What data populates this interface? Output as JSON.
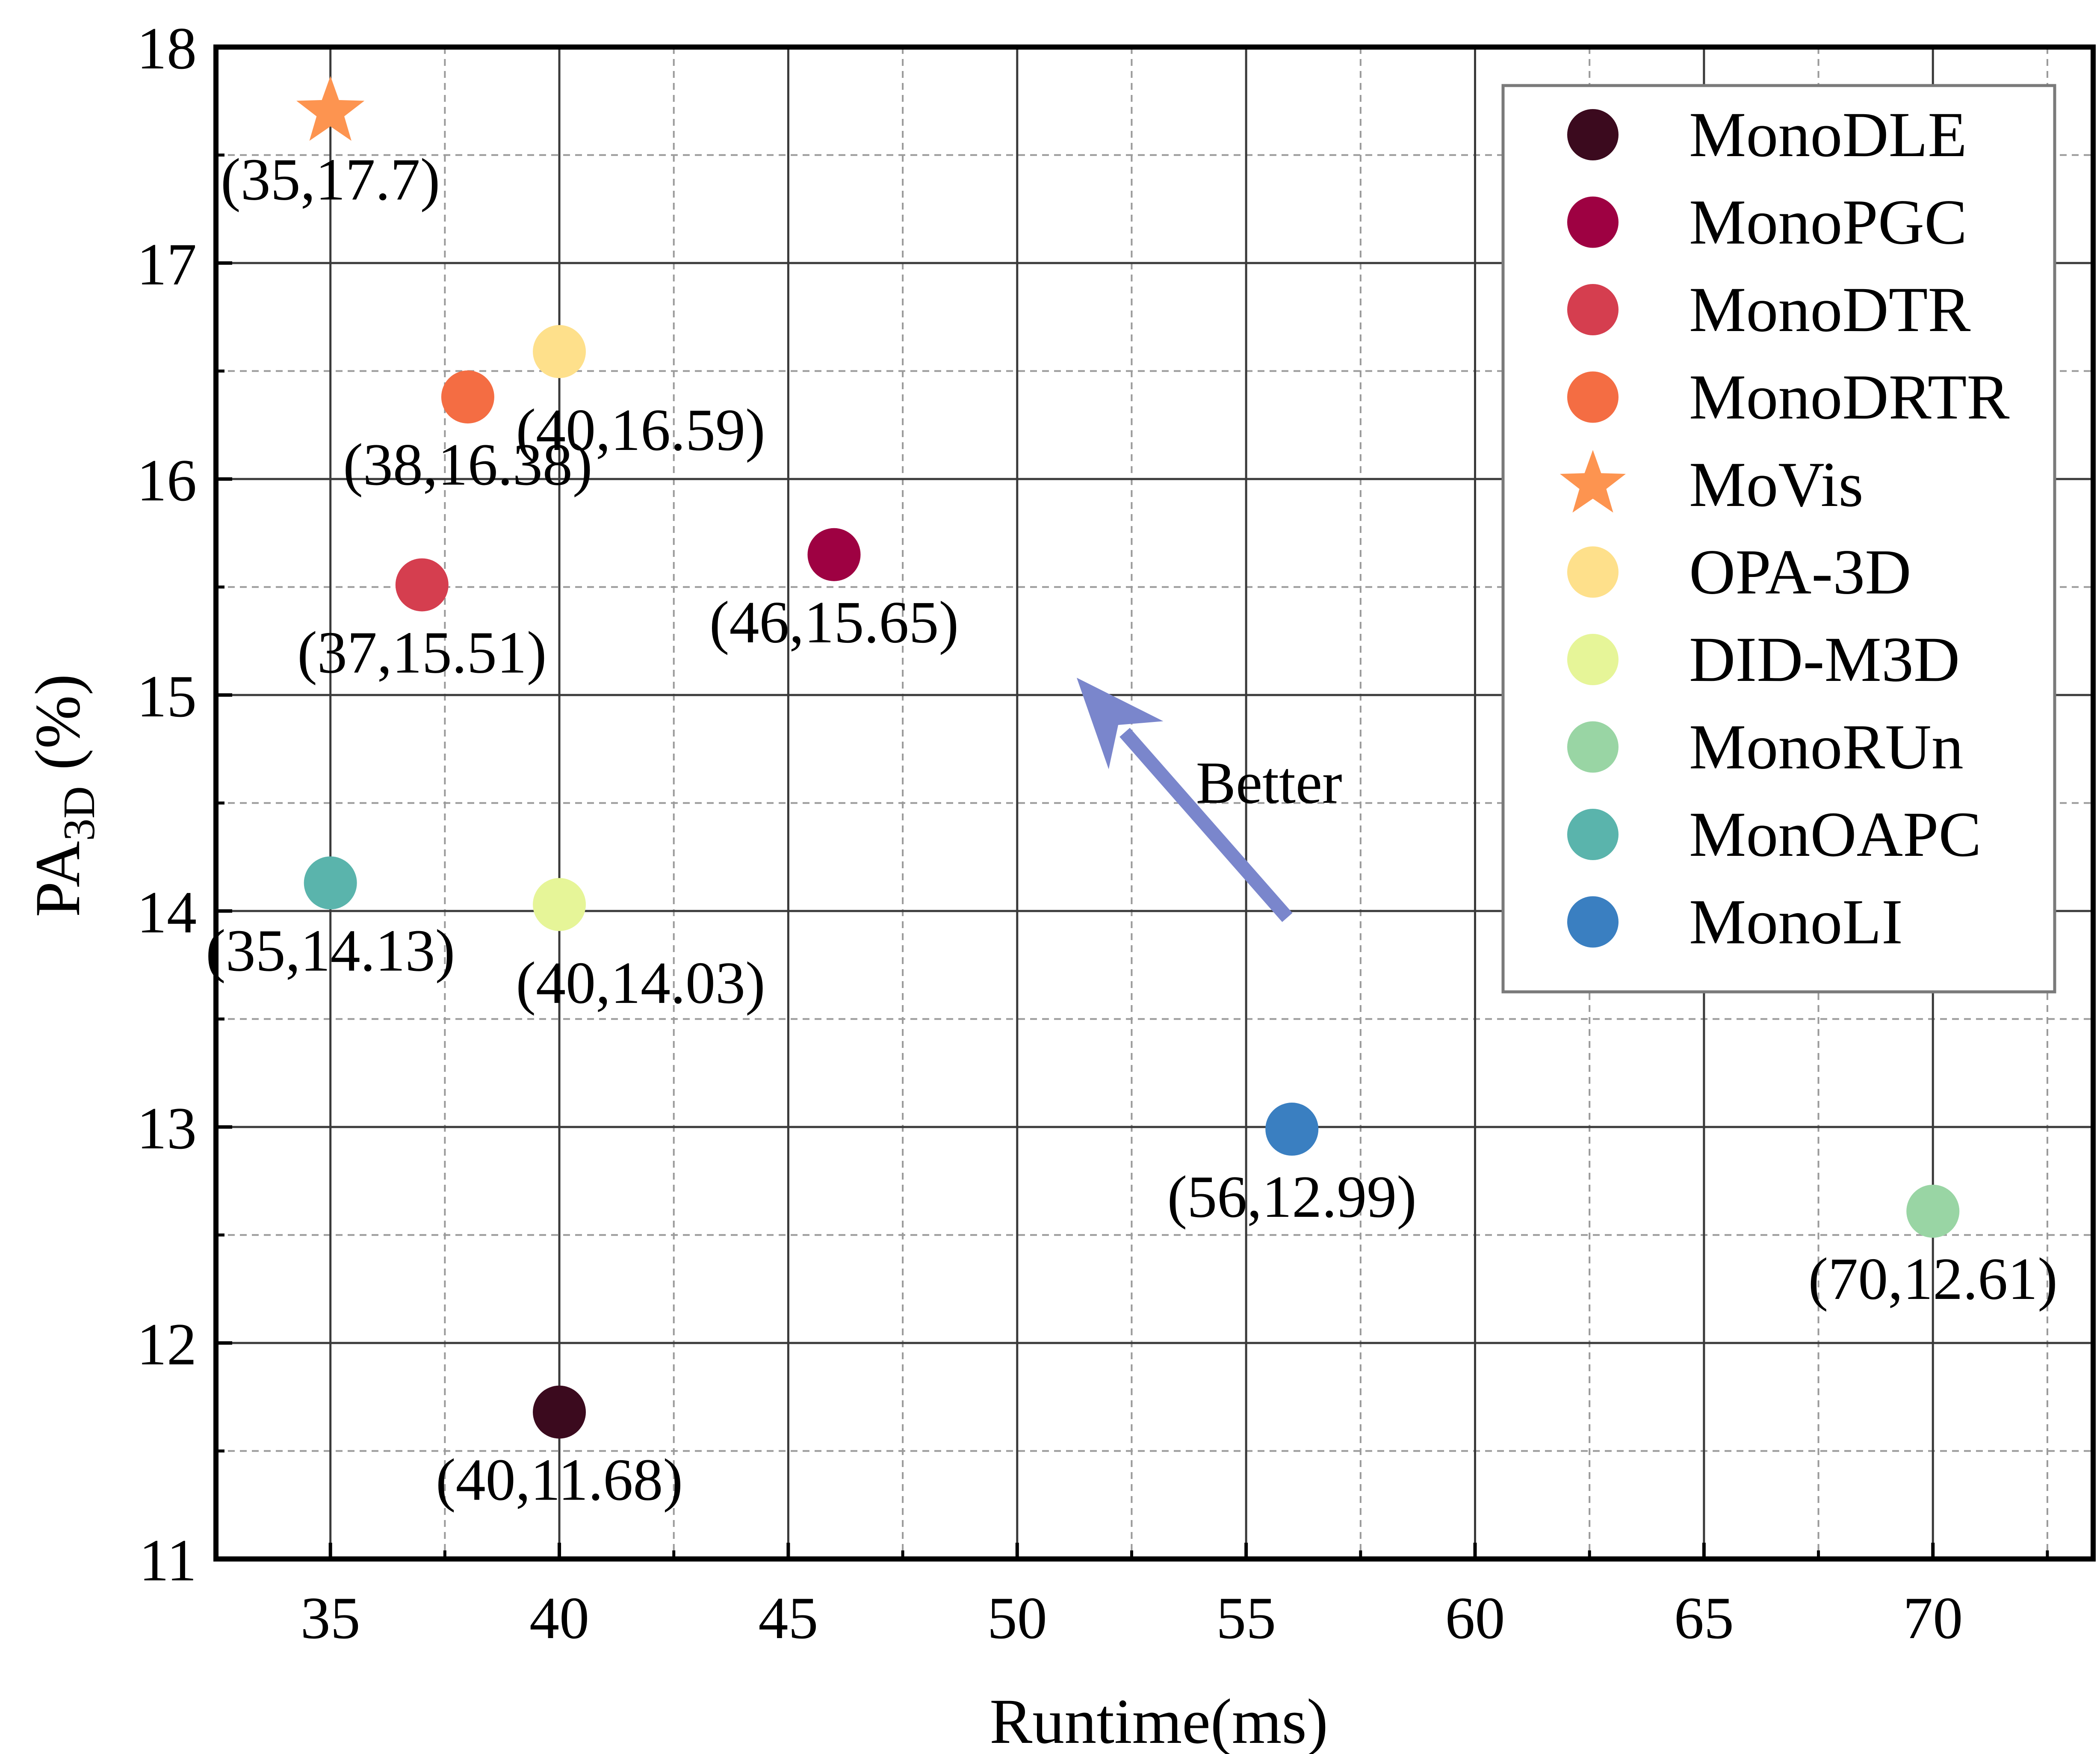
{
  "chart_data": {
    "type": "scatter",
    "title": "",
    "xlabel": "Runtime(ms)",
    "ylabel_main": "PA",
    "ylabel_sub": "3D",
    "ylabel_suffix": " (%)",
    "xlim": [
      32.5,
      73.5
    ],
    "ylim": [
      11,
      18
    ],
    "x_ticks": [
      35,
      40,
      45,
      50,
      55,
      60,
      65,
      70
    ],
    "y_ticks": [
      11,
      12,
      13,
      14,
      15,
      16,
      17,
      18
    ],
    "x_minor_step": 2.5,
    "y_minor_step": 0.5,
    "grid": true,
    "legend_position": "top-right",
    "series": [
      {
        "name": "MonoDLE",
        "marker": "circle",
        "color": "#3b0a1e",
        "x": 40,
        "y": 11.68,
        "label": "(40,11.68)",
        "label_pos": "below"
      },
      {
        "name": "MonoPGC",
        "marker": "circle",
        "color": "#9e0142",
        "x": 46,
        "y": 15.65,
        "label": "(46,15.65)",
        "label_pos": "below"
      },
      {
        "name": "MonoDTR",
        "marker": "circle",
        "color": "#d53e4f",
        "x": 37,
        "y": 15.51,
        "label": "(37,15.51)",
        "label_pos": "below"
      },
      {
        "name": "MonoDRTR",
        "marker": "circle",
        "color": "#f46d43",
        "x": 38,
        "y": 16.38,
        "label": "(38,16.38)",
        "label_pos": "below"
      },
      {
        "name": "MoVis",
        "marker": "star",
        "color": "#fd9450",
        "x": 35,
        "y": 17.7,
        "label": "(35,17.7)",
        "label_pos": "below"
      },
      {
        "name": "OPA-3D",
        "marker": "circle",
        "color": "#fee08b",
        "x": 40,
        "y": 16.59,
        "label": "(40,16.59)",
        "label_pos": "below-right"
      },
      {
        "name": "DID-M3D",
        "marker": "circle",
        "color": "#e6f598",
        "x": 40,
        "y": 14.03,
        "label": "(40,14.03)",
        "label_pos": "below-right"
      },
      {
        "name": "MonoRUn",
        "marker": "circle",
        "color": "#99d5a4",
        "x": 70,
        "y": 12.61,
        "label": "(70,12.61)",
        "label_pos": "below"
      },
      {
        "name": "MonOAPC",
        "marker": "circle",
        "color": "#5ab4ac",
        "x": 35,
        "y": 14.13,
        "label": "(35,14.13)",
        "label_pos": "below"
      },
      {
        "name": "MonoLI",
        "marker": "circle",
        "color": "#3a7fc1",
        "x": 56,
        "y": 12.99,
        "label": "(56,12.99)",
        "label_pos": "below"
      }
    ],
    "annotation": {
      "text": "Better",
      "arrow_color": "#7a86cc",
      "arrow_from": [
        55.9,
        13.97
      ],
      "arrow_to": [
        51.3,
        15.08
      ],
      "text_at": [
        55.5,
        14.6
      ]
    }
  }
}
